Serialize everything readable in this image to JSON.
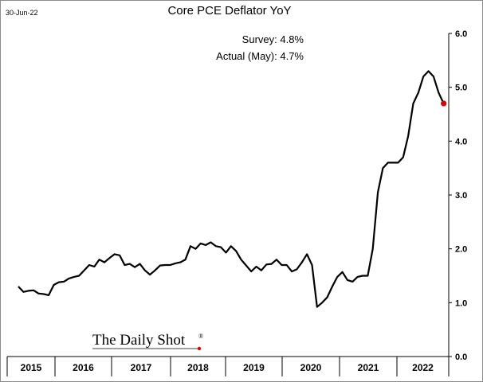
{
  "date_stamp": "30-Jun-22",
  "annotations": {
    "survey": "Survey:  4.8%",
    "actual": "Actual (May):  4.7%"
  },
  "brand": {
    "name": "The Daily Shot",
    "mark": "®"
  },
  "colors": {
    "line": "#000000",
    "marker": "#e00000",
    "axis": "#000000",
    "frame": "#8c8c8c"
  },
  "chart_data": {
    "type": "line",
    "title": "Core PCE Deflator YoY",
    "xlabel": "",
    "ylabel": "",
    "grid": false,
    "y_axis_side": "right",
    "ylim": [
      0.0,
      6.0
    ],
    "yticks": [
      "0.0",
      "1.0",
      "2.0",
      "3.0",
      "4.0",
      "5.0",
      "6.0"
    ],
    "xticks": [
      "2015",
      "2016",
      "2017",
      "2018",
      "2019",
      "2020",
      "2021",
      "2022"
    ],
    "series": [
      {
        "values": [
          1.3,
          1.2,
          1.22,
          1.23,
          1.17,
          1.16,
          1.14,
          1.33,
          1.38,
          1.39,
          1.45,
          1.48,
          1.5,
          1.6,
          1.7,
          1.67,
          1.8,
          1.75,
          1.83,
          1.9,
          1.88,
          1.7,
          1.72,
          1.66,
          1.72,
          1.6,
          1.52,
          1.6,
          1.69,
          1.7,
          1.7,
          1.73,
          1.75,
          1.8,
          2.05,
          2.0,
          2.1,
          2.07,
          2.12,
          2.05,
          2.03,
          1.93,
          2.05,
          1.96,
          1.8,
          1.69,
          1.58,
          1.67,
          1.6,
          1.71,
          1.72,
          1.8,
          1.7,
          1.7,
          1.58,
          1.62,
          1.75,
          1.9,
          1.7,
          0.92,
          1.0,
          1.1,
          1.3,
          1.48,
          1.57,
          1.42,
          1.39,
          1.48,
          1.5,
          1.5,
          2.0,
          3.05,
          3.5,
          3.6,
          3.6,
          3.6,
          3.7,
          4.1,
          4.7,
          4.9,
          5.2,
          5.3,
          5.2,
          4.9,
          4.7
        ]
      }
    ],
    "last_point": 4.7
  }
}
